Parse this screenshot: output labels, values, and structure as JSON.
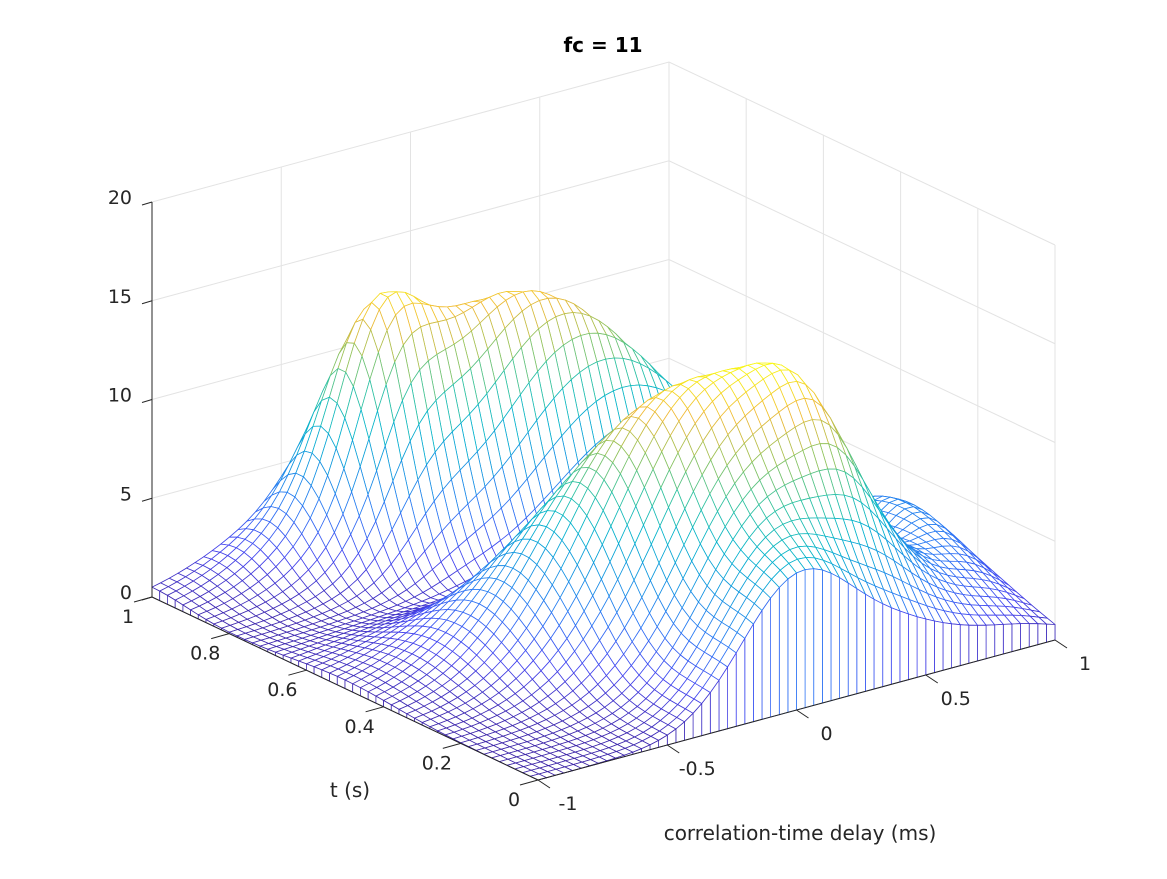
{
  "chart_data": {
    "type": "mesh",
    "title": "fc = 11",
    "xlabel": "correlation-time delay (ms)",
    "ylabel": "t (s)",
    "zlabel": "",
    "xlim": [
      -1,
      1
    ],
    "ylim": [
      0,
      1
    ],
    "zlim": [
      0,
      20
    ],
    "xticks": [
      -1,
      -0.5,
      0,
      0.5,
      1
    ],
    "xtick_labels": [
      "-1",
      "-0.5",
      "0",
      "0.5",
      "1"
    ],
    "yticks": [
      0,
      0.2,
      0.4,
      0.6,
      0.8,
      1
    ],
    "ytick_labels": [
      "0",
      "0.2",
      "0.4",
      "0.6",
      "0.8",
      "1"
    ],
    "zticks": [
      0,
      5,
      10,
      15,
      20
    ],
    "ztick_labels": [
      "0",
      "5",
      "10",
      "15",
      "20"
    ],
    "grid": true,
    "colormap": "parula",
    "x_samples": 61,
    "y_samples": 51,
    "surface_components": [
      {
        "amp": 13,
        "x_mu": 0.15,
        "x_sigma": 0.45,
        "y_mu": 0.85,
        "y_slope": -0.15,
        "y_sigma": 0.09
      },
      {
        "amp": 5.5,
        "x_mu": -0.3,
        "x_sigma": 0.13,
        "y_mu": 0.85,
        "y_slope": -0.15,
        "y_sigma": 0.08
      },
      {
        "amp": 13.5,
        "x_mu": 0.05,
        "x_sigma": 0.4,
        "y_mu": 0.3,
        "y_slope": -0.2,
        "y_sigma": 0.13
      },
      {
        "amp": 3,
        "x_mu": 0.35,
        "x_sigma": 0.12,
        "y_mu": 0.3,
        "y_slope": -0.2,
        "y_sigma": 0.1
      },
      {
        "amp": 6,
        "x_mu": 0.0,
        "x_sigma": 0.22,
        "y_mu": 0.0,
        "y_slope": 0,
        "y_sigma": 0.12
      },
      {
        "amp": 4,
        "x_mu": 0.9,
        "x_sigma": 0.12,
        "y_mu": 0.35,
        "y_slope": 0,
        "y_sigma": 0.15
      }
    ],
    "colors": {
      "axis": "#262626",
      "grid": "#e3e3e3"
    }
  }
}
